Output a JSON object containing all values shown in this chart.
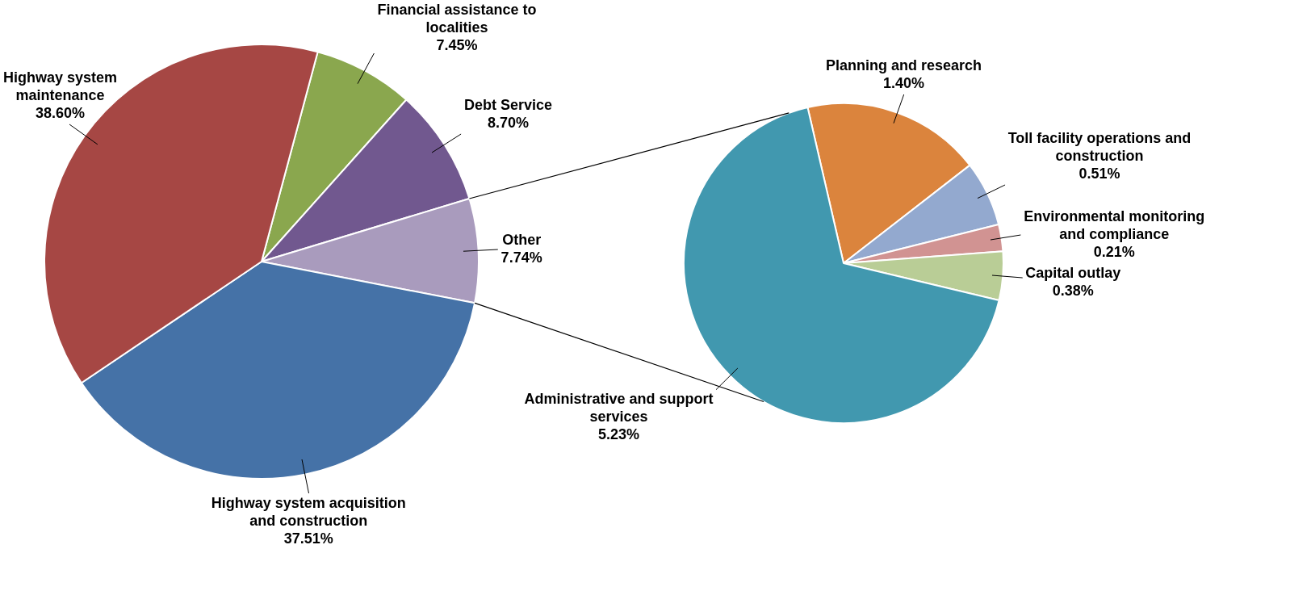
{
  "chart_data": [
    {
      "type": "pie",
      "categories": [
        "Financial assistance to localities",
        "Debt Service",
        "Other",
        "Highway system acquisition and construction",
        "Highway system maintenance"
      ],
      "values": [
        7.45,
        8.7,
        7.74,
        37.51,
        38.6
      ],
      "value_labels": [
        "7.45%",
        "8.70%",
        "7.74%",
        "37.51%",
        "38.60%"
      ],
      "colors": [
        "#8aa74e",
        "#71588f",
        "#a99bbd",
        "#4572a7",
        "#a64744"
      ]
    },
    {
      "type": "pie",
      "categories": [
        "Planning and research",
        "Toll facility operations and construction",
        "Environmental monitoring and compliance",
        "Capital outlay",
        "Administrative and support services"
      ],
      "values": [
        1.4,
        0.51,
        0.21,
        0.38,
        5.23
      ],
      "value_labels": [
        "1.40%",
        "0.51%",
        "0.21%",
        "0.38%",
        "5.23%"
      ],
      "colors": [
        "#db843d",
        "#93a9cf",
        "#d19392",
        "#b9cd96",
        "#4198af"
      ]
    }
  ]
}
